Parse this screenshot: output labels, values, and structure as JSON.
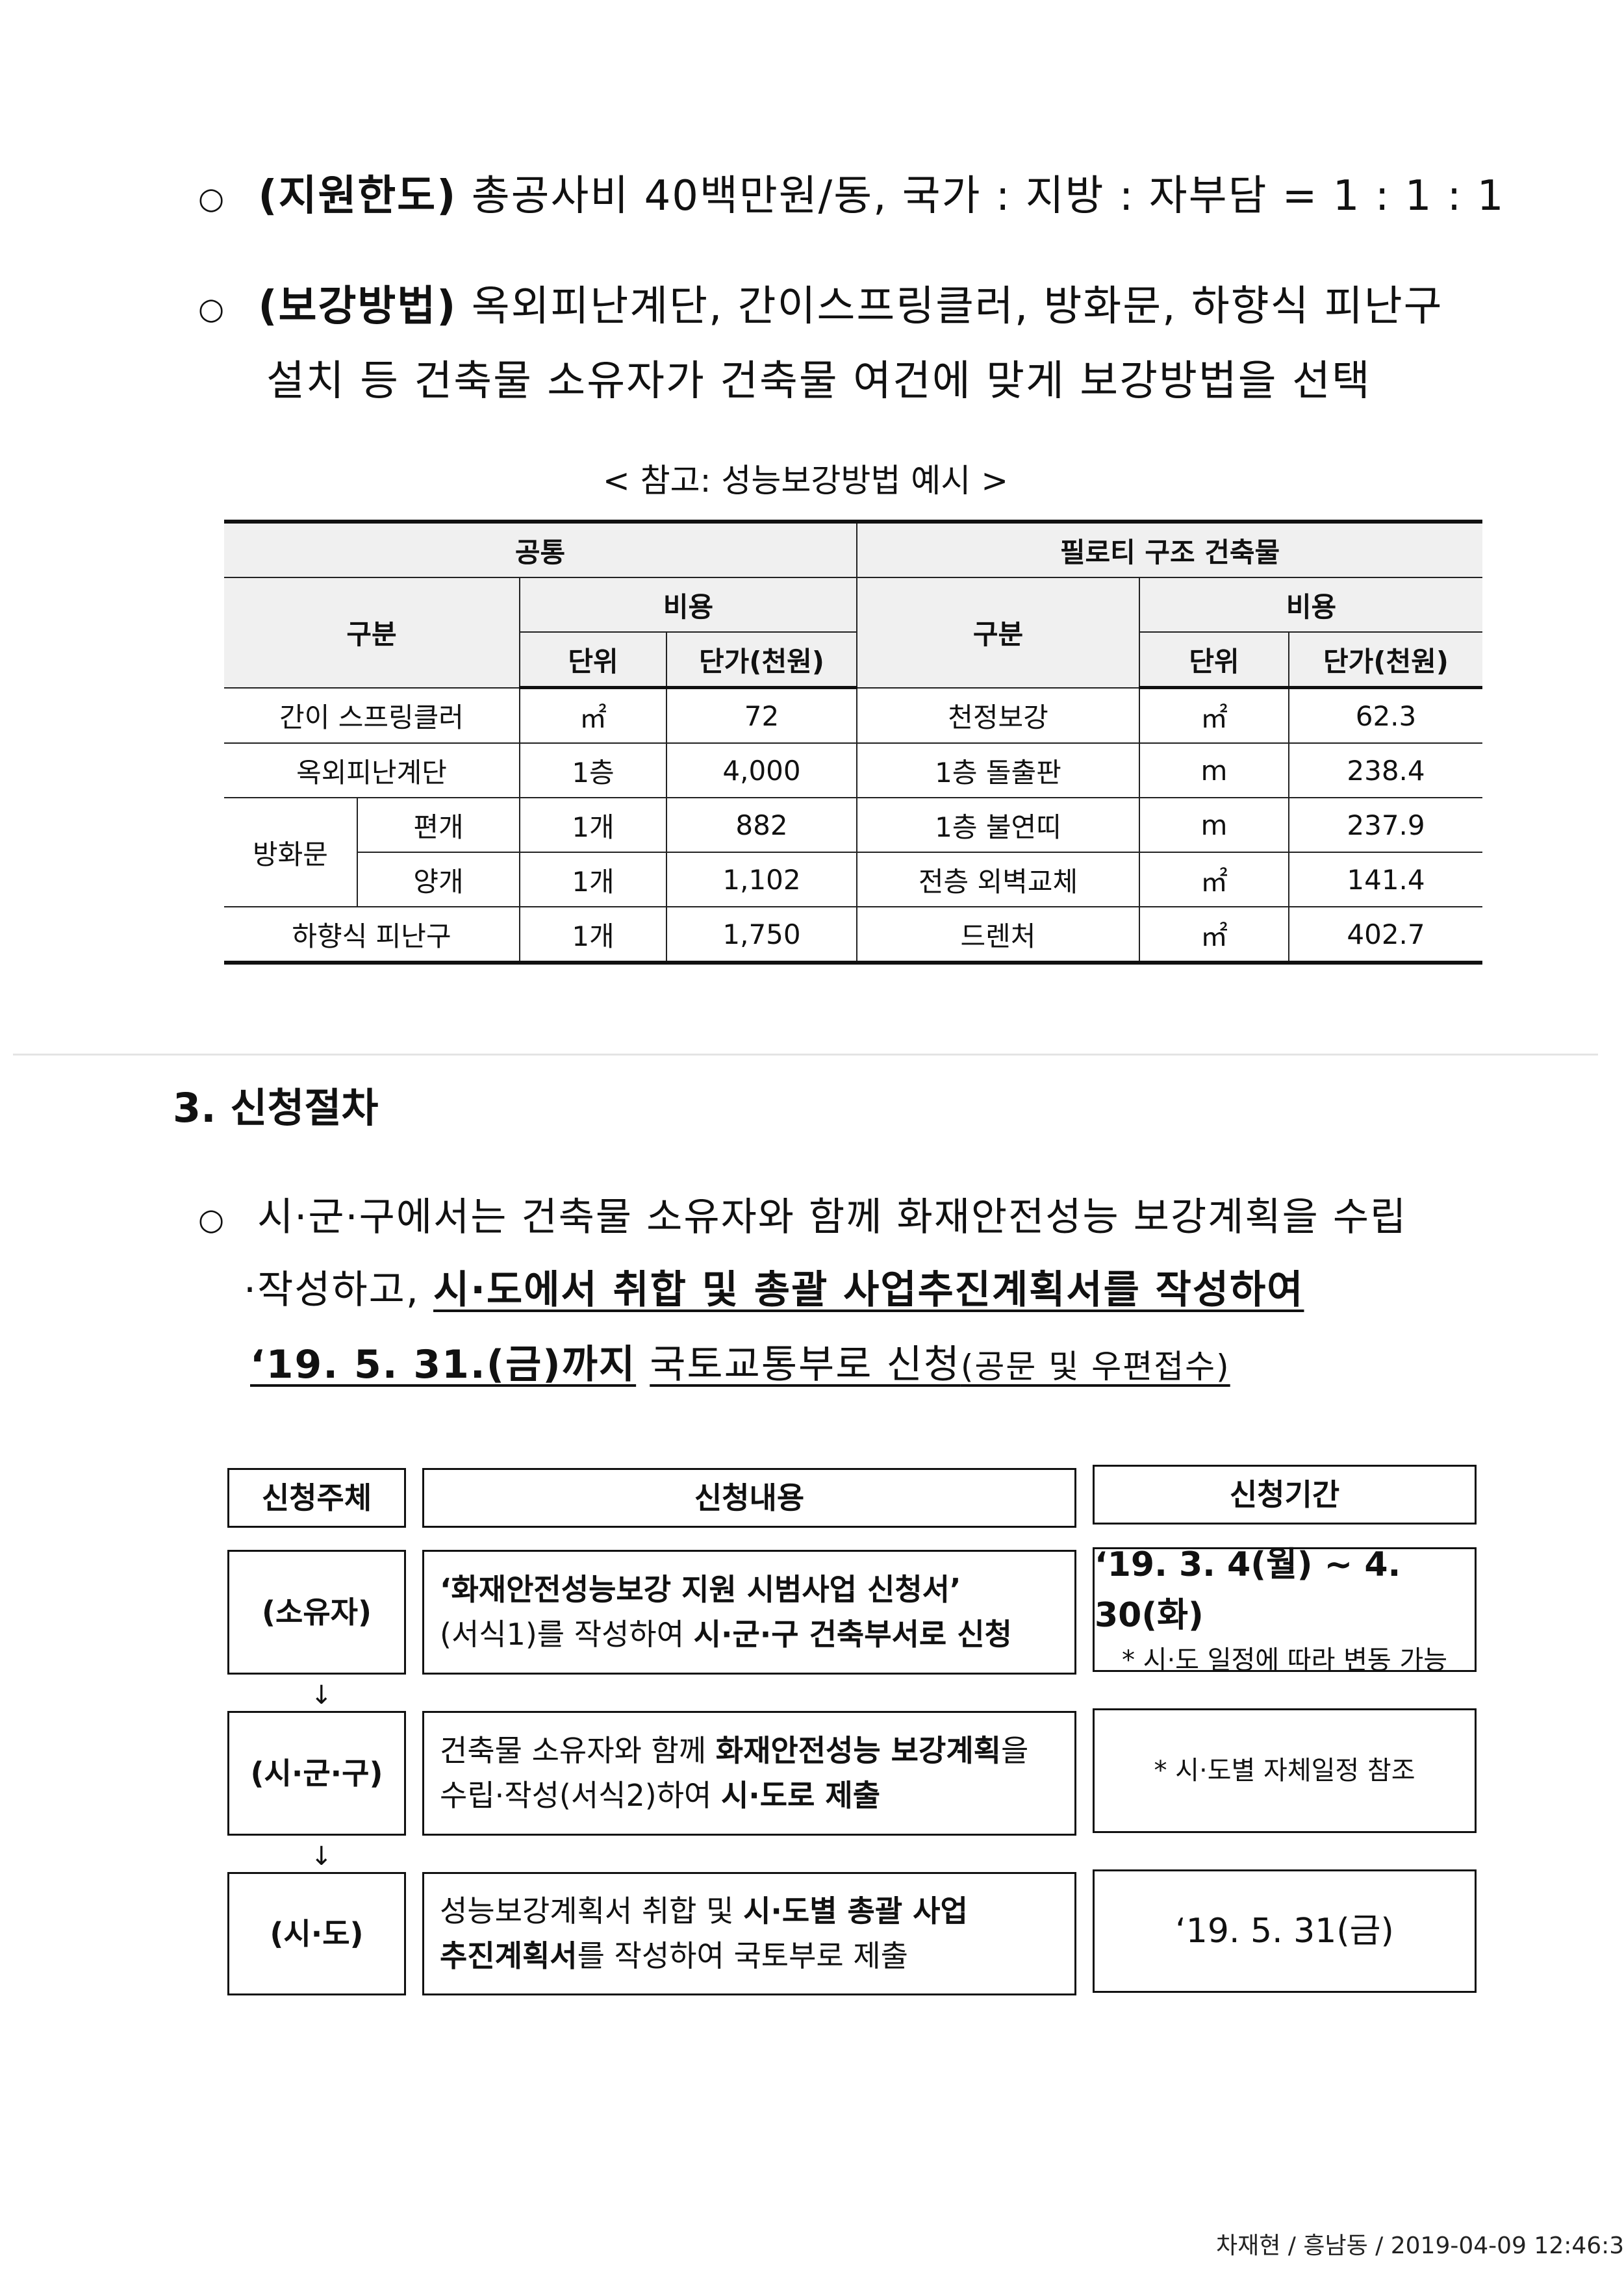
{
  "bullets": [
    {
      "symbol": "○",
      "label": "(지원한도)",
      "text": "총공사비 40백만원/동, 국가 : 지방 : 자부담 = 1 : 1 : 1"
    },
    {
      "symbol": "○",
      "label": "(보강방법)",
      "text": "옥외피난계단, 간이스프링클러, 방화문, 하향식 피난구",
      "text2": "설치 등 건축물 소유자가 건축물 여건에 맞게 보강방법을 선택"
    }
  ],
  "ref_table": {
    "caption": "< 참고: 성능보강방법 예시 >",
    "group_left": "공통",
    "group_right": "필로티 구조 건축물",
    "col_category": "구분",
    "col_cost": "비용",
    "col_unit": "단위",
    "col_price": "단가(천원)",
    "left_rows": [
      {
        "name": "간이 스프링클러",
        "unit": "㎡",
        "price": "72"
      },
      {
        "name": "옥외피난계단",
        "unit": "1층",
        "price": "4,000"
      },
      {
        "name": "방화문",
        "sub": "편개",
        "unit": "1개",
        "price": "882"
      },
      {
        "sub": "양개",
        "unit": "1개",
        "price": "1,102"
      },
      {
        "name": "하향식 피난구",
        "unit": "1개",
        "price": "1,750"
      }
    ],
    "right_rows": [
      {
        "name": "천정보강",
        "unit": "㎡",
        "price": "62.3"
      },
      {
        "name": "1층 돌출판",
        "unit": "m",
        "price": "238.4"
      },
      {
        "name": "1층 불연띠",
        "unit": "m",
        "price": "237.9"
      },
      {
        "name": "전층 외벽교체",
        "unit": "㎡",
        "price": "141.4"
      },
      {
        "name": "드렌처",
        "unit": "㎡",
        "price": "402.7"
      }
    ]
  },
  "section3": {
    "heading": "3. 신청절차",
    "bullet": "○",
    "p1": "시·군·구에서는 건축물 소유자와 함께 화재안전성능 보강계획을 수립",
    "p2a": "·작성하고,",
    "p2b": "시·도에서 취합 및 총괄 사업추진계획서를 작성하여",
    "p3a": "‘19. 5. 31.(금)까지",
    "p3b": "국토교통부로 신청",
    "p3c": "(공문 및 우편접수)"
  },
  "flow": {
    "headers": [
      "신청주체",
      "신청내용",
      "신청기간"
    ],
    "rows": [
      {
        "subject": "(소유자)",
        "content1": "‘화재안전성능보강 지원 시범사업 신청서’",
        "content2a": "(서식1)를 작성하여 ",
        "content2b": "시·군·구 건축부서로 신청",
        "period": "‘19. 3. 4(월) ~ 4. 30(화)",
        "period_note": "* 시·도 일정에 따라 변동 가능"
      },
      {
        "subject": "(시·군·구)",
        "content1a": "건축물 소유자와 함께 ",
        "content1b": "화재안전성능 보강계획",
        "content1c": "을",
        "content2a": "수립·작성(서식2)하여 ",
        "content2b": "시·도로 제출",
        "period_note": "* 시·도별 자체일정 참조"
      },
      {
        "subject": "(시·도)",
        "content1a": "성능보강계획서 취합 및 ",
        "content1b": "시·도별 총괄 사업",
        "content2a": "추진계획서",
        "content2b": "를 작성하여 국토부로 제출",
        "period": "‘19. 5. 31(금)"
      }
    ],
    "arrow": "↓"
  },
  "footer": "차재현 / 흥남동 / 2019-04-09 12:46:3"
}
